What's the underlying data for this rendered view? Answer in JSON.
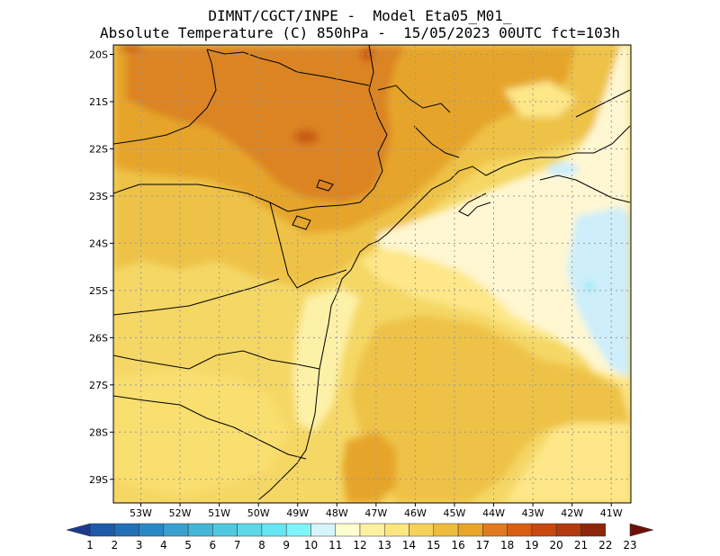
{
  "title": {
    "line1": "DIMNT/CGCT/INPE -  Model Eta05_M01_",
    "line2": "Absolute Temperature (C) 850hPa -  15/05/2023 00UTC fct=103h"
  },
  "map": {
    "lon_range": [
      -53.7,
      -40.5
    ],
    "lat_range": [
      -29.5,
      -19.8
    ],
    "lon_labels": [
      "53W",
      "52W",
      "51W",
      "50W",
      "49W",
      "48W",
      "47W",
      "46W",
      "45W",
      "44W",
      "43W",
      "42W",
      "41W"
    ],
    "lat_labels": [
      "20S",
      "21S",
      "22S",
      "23S",
      "24S",
      "25S",
      "26S",
      "27S",
      "28S",
      "29S"
    ],
    "grid": "dotted"
  },
  "colorbar": {
    "labels": [
      "1",
      "2",
      "3",
      "4",
      "5",
      "6",
      "7",
      "8",
      "9",
      "10",
      "11",
      "12",
      "13",
      "14",
      "15",
      "16",
      "17",
      "18",
      "19",
      "20",
      "21",
      "22",
      "23"
    ],
    "colors": [
      "#1b3a8c",
      "#1e5aa8",
      "#2270b8",
      "#2b88c6",
      "#3aa0d0",
      "#45b5d8",
      "#50c9e0",
      "#5cd8e8",
      "#66e6f2",
      "#7ff5fa",
      "#d6f5fb",
      "#ffffd0",
      "#fef0a0",
      "#fce680",
      "#f6d25a",
      "#efbd3c",
      "#e9a528",
      "#e07a20",
      "#d85e14",
      "#c84810",
      "#b23a0e",
      "#8e260a",
      "#6e1008"
    ]
  }
}
